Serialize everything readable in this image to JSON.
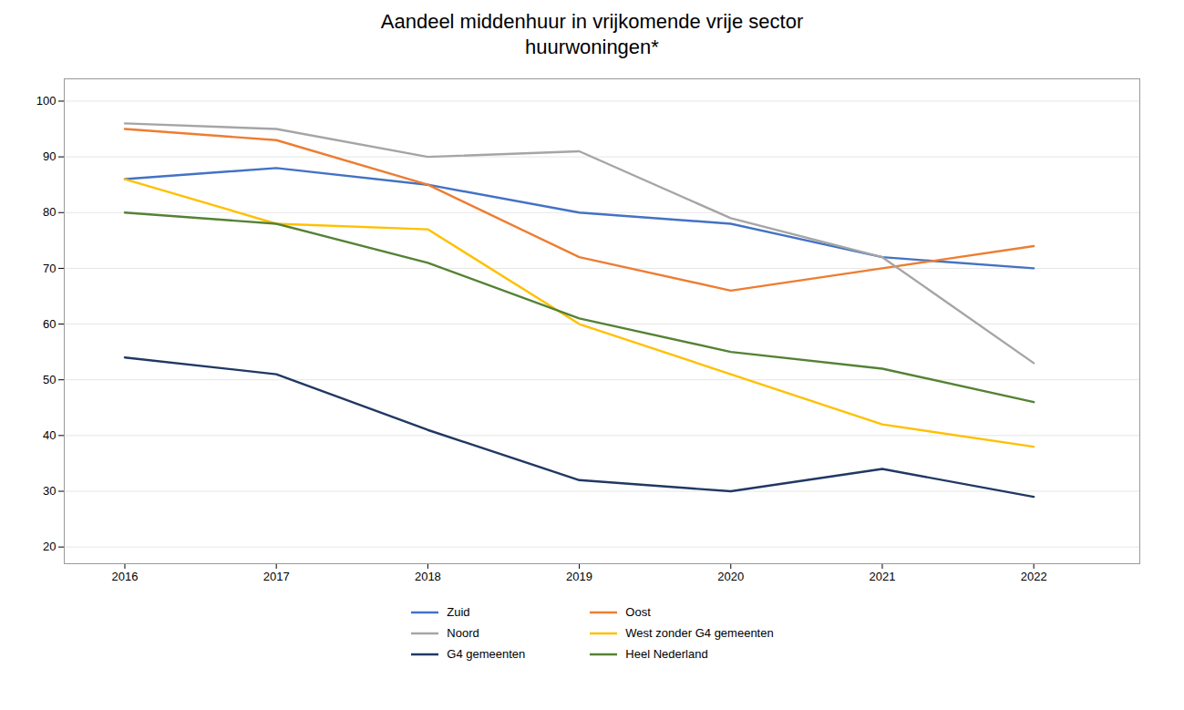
{
  "chart_data": {
    "type": "line",
    "title": "Aandeel middenhuur in vrijkomende vrije sector\nhuurwoningen*",
    "x": [
      2016,
      2017,
      2018,
      2019,
      2020,
      2021,
      2022
    ],
    "series": [
      {
        "name": "Zuid",
        "color": "#4472C4",
        "values": [
          86,
          88,
          85,
          80,
          78,
          72,
          70
        ]
      },
      {
        "name": "Oost",
        "color": "#ED7D31",
        "values": [
          95,
          93,
          85,
          72,
          66,
          70,
          74
        ]
      },
      {
        "name": "Noord",
        "color": "#A5A5A5",
        "values": [
          96,
          95,
          90,
          91,
          79,
          72,
          53
        ]
      },
      {
        "name": "West zonder G4 gemeenten",
        "color": "#FFC000",
        "values": [
          86,
          78,
          77,
          60,
          51,
          42,
          38
        ]
      },
      {
        "name": "G4 gemeenten",
        "color": "#203864",
        "values": [
          54,
          51,
          41,
          32,
          30,
          34,
          29
        ]
      },
      {
        "name": "Heel Nederland",
        "color": "#548235",
        "values": [
          80,
          78,
          71,
          61,
          55,
          52,
          46
        ]
      }
    ],
    "xlim": [
      2015.6,
      2022.7
    ],
    "xticks": [
      2016,
      2017,
      2018,
      2019,
      2020,
      2021,
      2022
    ],
    "ylim": [
      17,
      104
    ],
    "yticks": [
      20,
      30,
      40,
      50,
      60,
      70,
      80,
      90,
      100
    ],
    "grid": true,
    "legend": "bottom"
  }
}
